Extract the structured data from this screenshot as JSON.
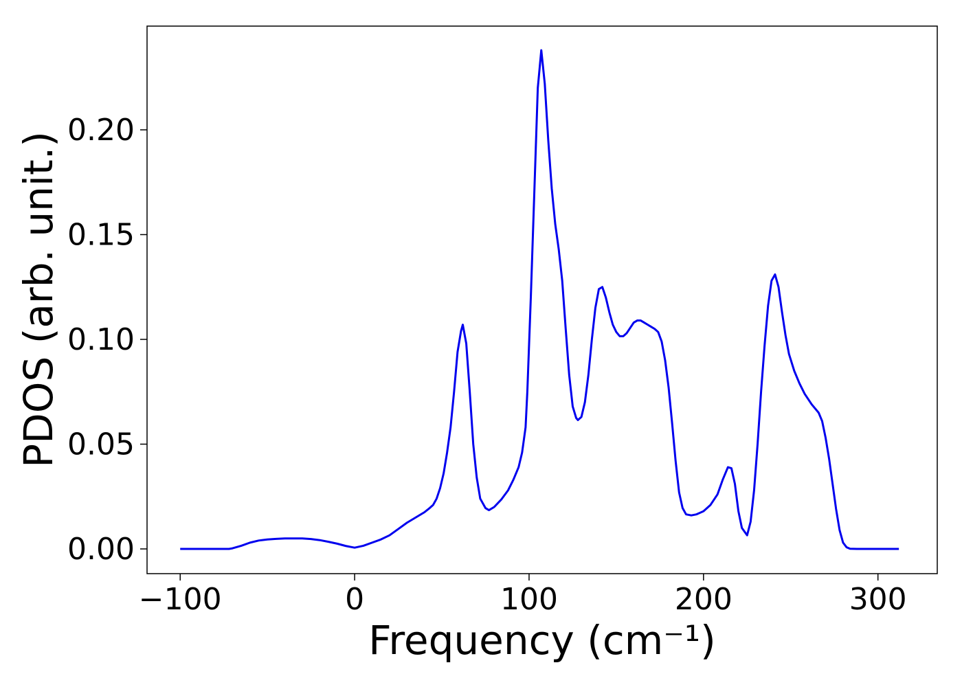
{
  "chart_data": {
    "type": "line",
    "xlabel": "Frequency (cm⁻¹)",
    "ylabel": "PDOS (arb. unit.)",
    "x": [
      -100,
      -90,
      -80,
      -72,
      -70,
      -65,
      -60,
      -55,
      -50,
      -45,
      -40,
      -35,
      -30,
      -25,
      -20,
      -15,
      -10,
      -5,
      0,
      5,
      10,
      15,
      20,
      25,
      30,
      35,
      40,
      43,
      45,
      47,
      49,
      51,
      53,
      55,
      57,
      59,
      61,
      62,
      64,
      66,
      68,
      70,
      72,
      75,
      77,
      80,
      84,
      88,
      91,
      94,
      96,
      98,
      99,
      101,
      103,
      105,
      107,
      109,
      111,
      113,
      115,
      117,
      119,
      121,
      123,
      125,
      127,
      128,
      130,
      132,
      134,
      136,
      138,
      140,
      142,
      144,
      146,
      148,
      150,
      152,
      154,
      156,
      158,
      160,
      162,
      164,
      166,
      168,
      170,
      172,
      174,
      176,
      178,
      180,
      182,
      184,
      186,
      188,
      190,
      193,
      196,
      200,
      204,
      208,
      211,
      214,
      216,
      218,
      220,
      222,
      225,
      227,
      229,
      231,
      233,
      235,
      237,
      239,
      241,
      243,
      245,
      247,
      249,
      252,
      255,
      258,
      262,
      266,
      268,
      270,
      272,
      274,
      276,
      278,
      280,
      282,
      284,
      288,
      300,
      312
    ],
    "series": [
      {
        "name": null,
        "color": "#0000ee",
        "values": [
          0,
          0,
          0,
          0,
          0.0003,
          0.0015,
          0.003,
          0.004,
          0.0045,
          0.0048,
          0.005,
          0.005,
          0.005,
          0.0047,
          0.0042,
          0.0034,
          0.0025,
          0.0014,
          0.0006,
          0.0015,
          0.003,
          0.0045,
          0.0065,
          0.0095,
          0.0125,
          0.015,
          0.0175,
          0.0195,
          0.021,
          0.024,
          0.029,
          0.036,
          0.046,
          0.058,
          0.075,
          0.094,
          0.104,
          0.107,
          0.098,
          0.075,
          0.05,
          0.034,
          0.024,
          0.0195,
          0.0185,
          0.02,
          0.0235,
          0.028,
          0.033,
          0.039,
          0.046,
          0.058,
          0.075,
          0.12,
          0.17,
          0.22,
          0.238,
          0.222,
          0.195,
          0.172,
          0.155,
          0.143,
          0.128,
          0.105,
          0.083,
          0.068,
          0.0625,
          0.0615,
          0.063,
          0.07,
          0.083,
          0.1,
          0.115,
          0.124,
          0.125,
          0.12,
          0.113,
          0.107,
          0.1035,
          0.1015,
          0.1015,
          0.103,
          0.1055,
          0.108,
          0.109,
          0.109,
          0.108,
          0.107,
          0.106,
          0.105,
          0.1035,
          0.099,
          0.09,
          0.077,
          0.06,
          0.042,
          0.027,
          0.0195,
          0.0165,
          0.016,
          0.0165,
          0.018,
          0.021,
          0.026,
          0.033,
          0.039,
          0.0385,
          0.031,
          0.018,
          0.01,
          0.0065,
          0.013,
          0.028,
          0.05,
          0.075,
          0.097,
          0.116,
          0.128,
          0.131,
          0.125,
          0.113,
          0.102,
          0.093,
          0.085,
          0.079,
          0.074,
          0.069,
          0.065,
          0.061,
          0.053,
          0.043,
          0.031,
          0.019,
          0.009,
          0.003,
          0.0008,
          0.0001,
          0,
          0,
          0
        ]
      }
    ],
    "xlim": [
      -119,
      334
    ],
    "ylim": [
      -0.0118,
      0.2495
    ],
    "xticks": [
      {
        "value": -100,
        "label": "−100"
      },
      0,
      100,
      200,
      300
    ],
    "yticks": [
      {
        "value": 0,
        "label": "0.00"
      },
      {
        "value": 0.05,
        "label": "0.05"
      },
      {
        "value": 0.1,
        "label": "0.10"
      },
      {
        "value": 0.15,
        "label": "0.15"
      },
      {
        "value": 0.2,
        "label": "0.20"
      }
    ],
    "grid": false
  }
}
